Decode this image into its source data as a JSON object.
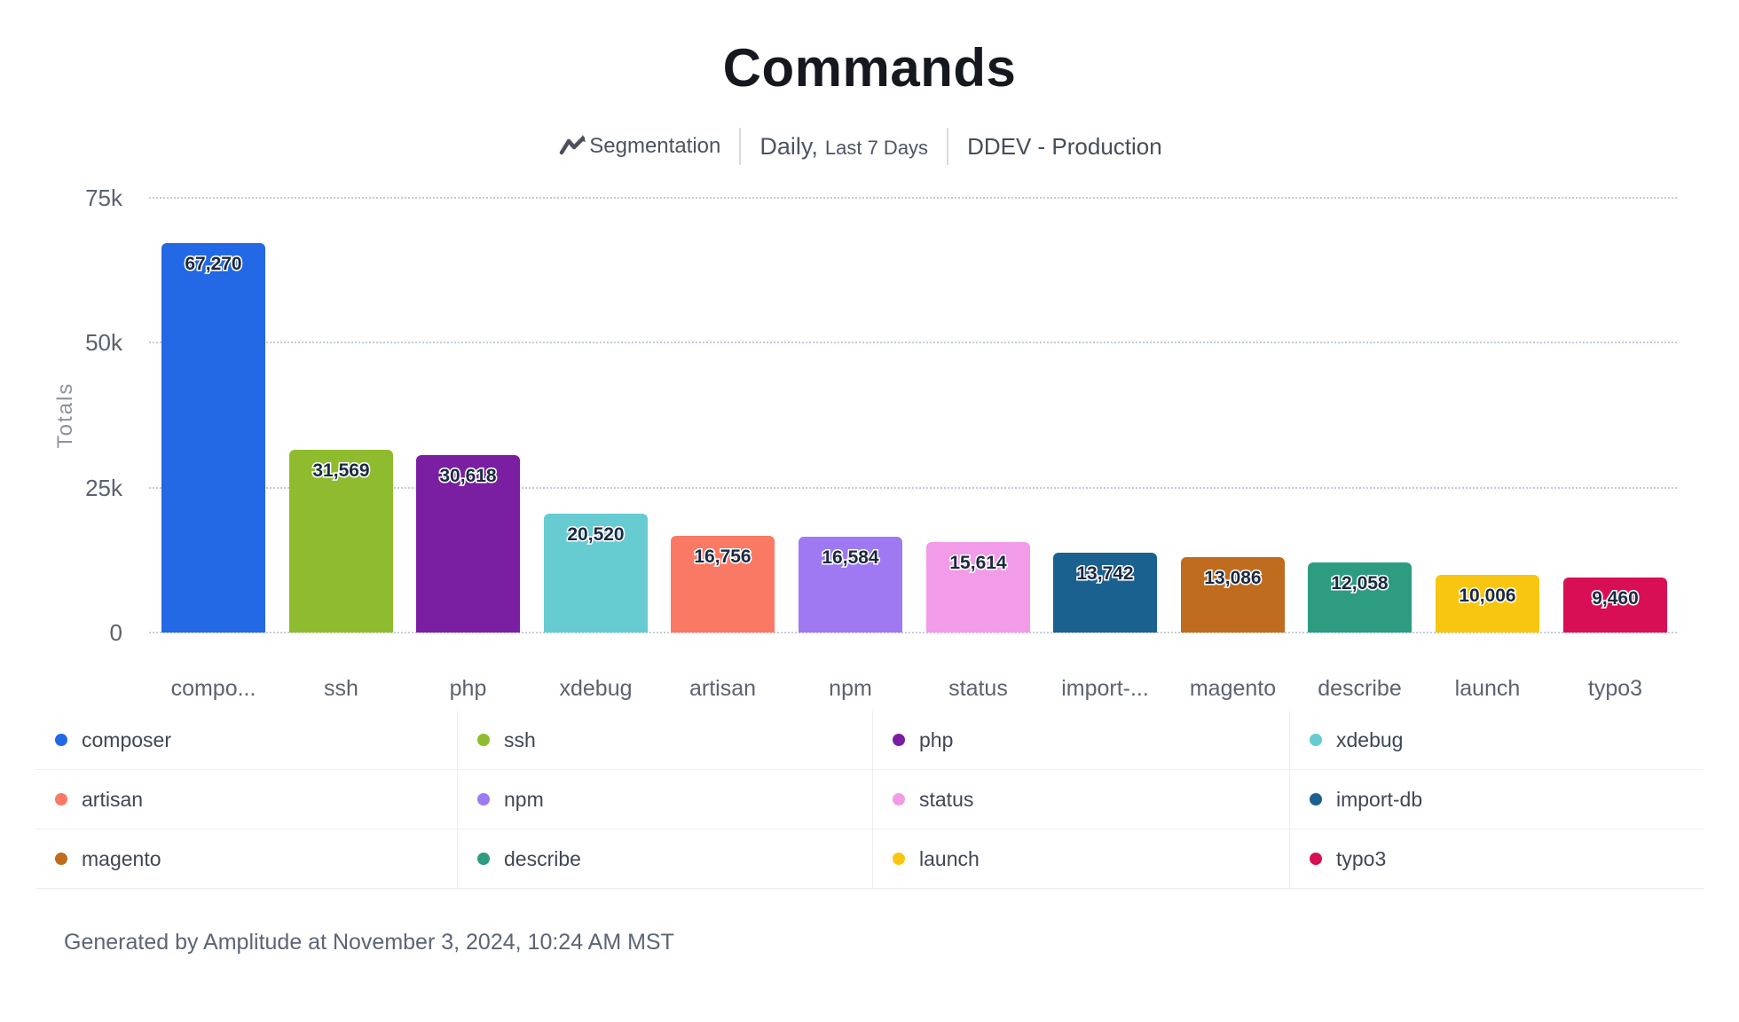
{
  "title": "Commands",
  "subtitle": {
    "segmentation_label": "Segmentation",
    "date_range_primary": "Daily,",
    "date_range_secondary": "Last 7 Days",
    "project": "DDEV - Production"
  },
  "chart_data": {
    "type": "bar",
    "title": "Commands",
    "ylabel": "Totals",
    "ylim": [
      0,
      75000
    ],
    "y_ticks": [
      {
        "label": "75k",
        "value": 75000
      },
      {
        "label": "50k",
        "value": 50000
      },
      {
        "label": "25k",
        "value": 25000
      },
      {
        "label": "0",
        "value": 0
      }
    ],
    "grid": "horizontal-dotted",
    "legend_position": "bottom-grid-4x3",
    "categories": [
      "composer",
      "ssh",
      "php",
      "xdebug",
      "artisan",
      "npm",
      "status",
      "import-db",
      "magento",
      "describe",
      "launch",
      "typo3"
    ],
    "x_tick_labels": [
      "compo...",
      "ssh",
      "php",
      "xdebug",
      "artisan",
      "npm",
      "status",
      "import-...",
      "magento",
      "describe",
      "launch",
      "typo3"
    ],
    "values": [
      67270,
      31569,
      30618,
      20520,
      16756,
      16584,
      15614,
      13742,
      13086,
      12058,
      10006,
      9460
    ],
    "value_labels": [
      "67,270",
      "31,569",
      "30,618",
      "20,520",
      "16,756",
      "16,584",
      "15,614",
      "13,742",
      "13,086",
      "12,058",
      "10,006",
      "9,460"
    ],
    "colors": [
      "#2368e4",
      "#8fbc2f",
      "#7b1fa2",
      "#66ccd2",
      "#f97964",
      "#9e79f2",
      "#f29be8",
      "#1a6190",
      "#c06c1e",
      "#2d9c81",
      "#f8c611",
      "#d80f54"
    ]
  },
  "legend": {
    "items": [
      {
        "label": "composer",
        "color": "#2368e4"
      },
      {
        "label": "ssh",
        "color": "#8fbc2f"
      },
      {
        "label": "php",
        "color": "#7b1fa2"
      },
      {
        "label": "xdebug",
        "color": "#66ccd2"
      },
      {
        "label": "artisan",
        "color": "#f97964"
      },
      {
        "label": "npm",
        "color": "#9e79f2"
      },
      {
        "label": "status",
        "color": "#f29be8"
      },
      {
        "label": "import-db",
        "color": "#1a6190"
      },
      {
        "label": "magento",
        "color": "#c06c1e"
      },
      {
        "label": "describe",
        "color": "#2d9c81"
      },
      {
        "label": "launch",
        "color": "#f8c611"
      },
      {
        "label": "typo3",
        "color": "#d80f54"
      }
    ]
  },
  "icons": {
    "segmentation_icon": "trend-zigzag-line",
    "icon_color": "#4a515c"
  },
  "footer": {
    "generated_text": "Generated by Amplitude at November 3, 2024, 10:24 AM MST"
  }
}
